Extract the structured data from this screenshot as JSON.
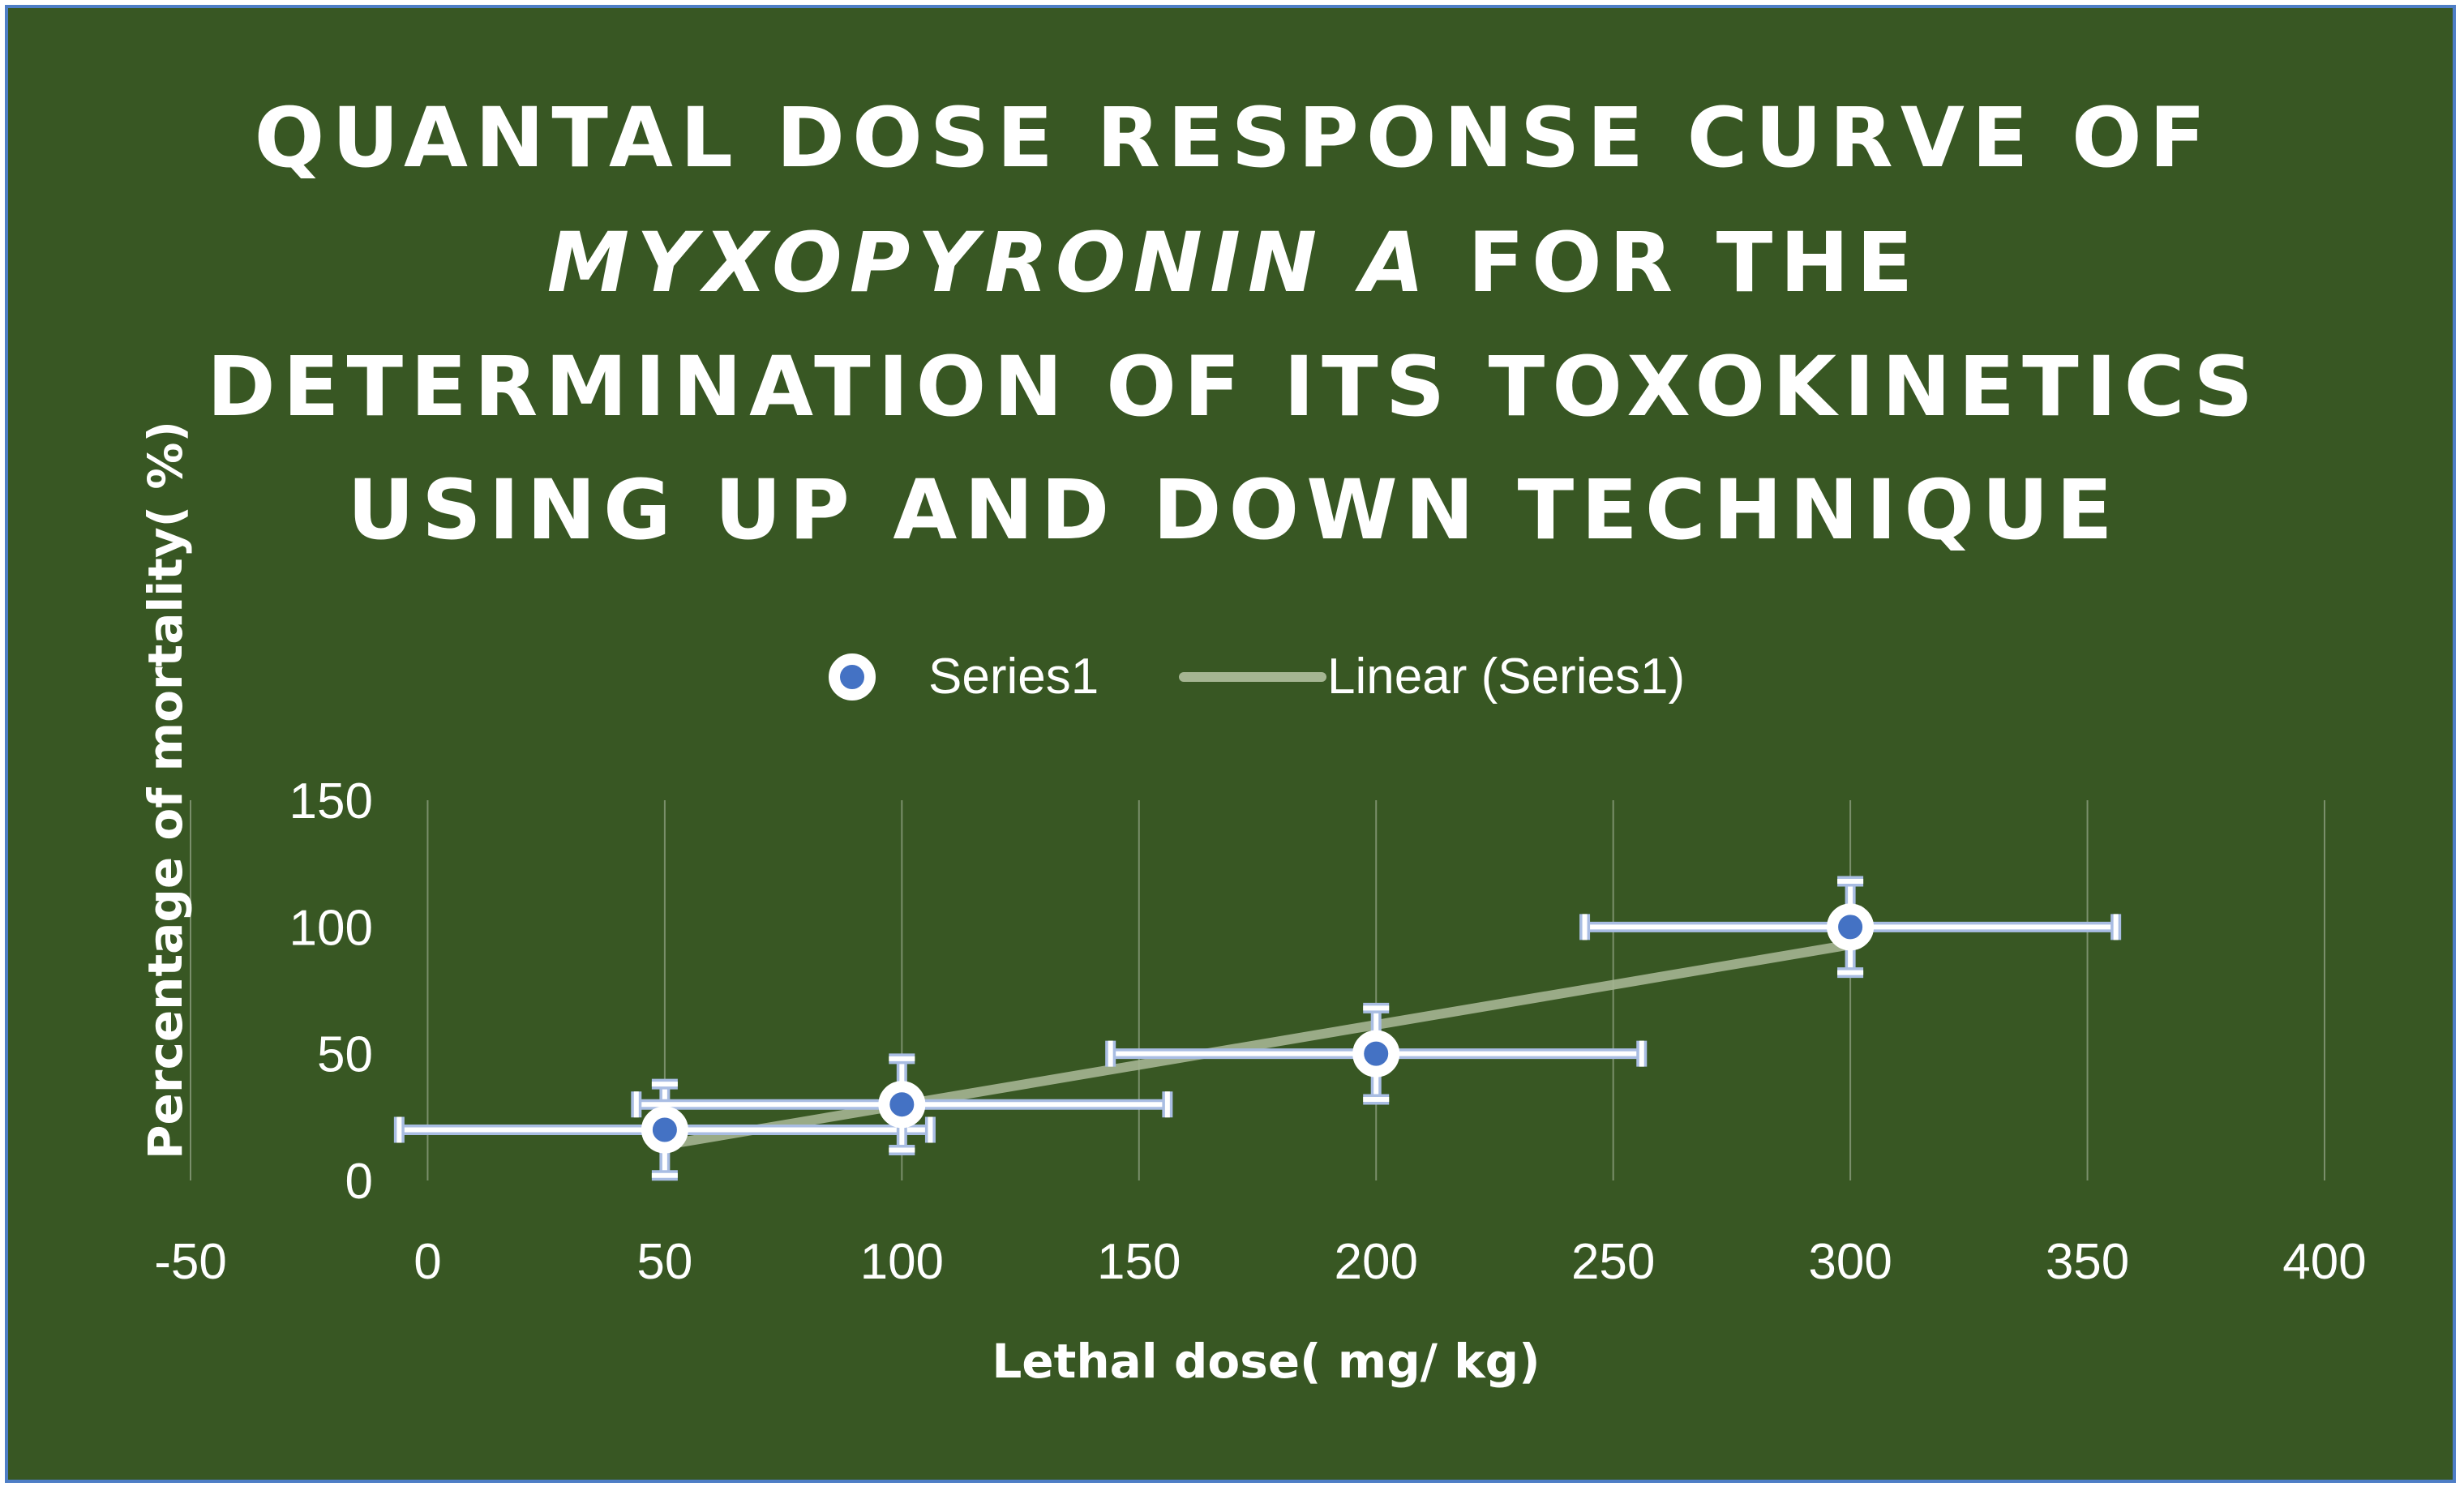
{
  "chart_data": {
    "type": "scatter",
    "title_lines": [
      "QUANTAL DOSE RESPONSE CURVE OF",
      "MYXOPYRONIN A FOR THE",
      "DETERMINATION OF ITS TOXOKINETICS",
      "USING UP AND DOWN TECHNIQUE"
    ],
    "title_line2_italic": "MYXOPYRONIN A",
    "title_line2_rest": " FOR THE",
    "xlabel": "Lethal dose( mg/ kg)",
    "ylabel": "Percentage of mortality(  %)",
    "xlim": [
      -50,
      400
    ],
    "ylim": [
      0,
      150
    ],
    "x_ticks": [
      -50,
      0,
      50,
      100,
      150,
      200,
      250,
      300,
      350,
      400
    ],
    "x_tick_labels": [
      "-50",
      "0",
      "50",
      "100",
      "150",
      "200",
      "250",
      "300",
      "350",
      "400"
    ],
    "y_ticks": [
      0,
      50,
      100,
      150
    ],
    "y_tick_labels": [
      "0",
      "50",
      "100",
      "150"
    ],
    "grid": "vertical",
    "legend_position": "top",
    "series": [
      {
        "name": "Series1",
        "kind": "markers",
        "x": [
          50,
          100,
          200,
          300
        ],
        "y": [
          20,
          30,
          50,
          100
        ],
        "x_error": [
          56,
          56,
          56,
          56
        ],
        "y_error": [
          18,
          18,
          18,
          18
        ]
      }
    ],
    "trendline": {
      "name": "Linear (Series1)",
      "kind": "linear",
      "x_range": [
        50,
        300
      ],
      "y_range": [
        14,
        93
      ]
    },
    "colors": {
      "background": "#385723",
      "marker_fill": "#4472c4",
      "marker_edge": "#ffffff",
      "error_bar": "#ffffff",
      "error_bar_outline": "#a9bde3",
      "trendline": "#a5b592",
      "gridline": "#7a8f6b",
      "text": "#ffffff",
      "frame_border": "#4e7ec6"
    }
  }
}
